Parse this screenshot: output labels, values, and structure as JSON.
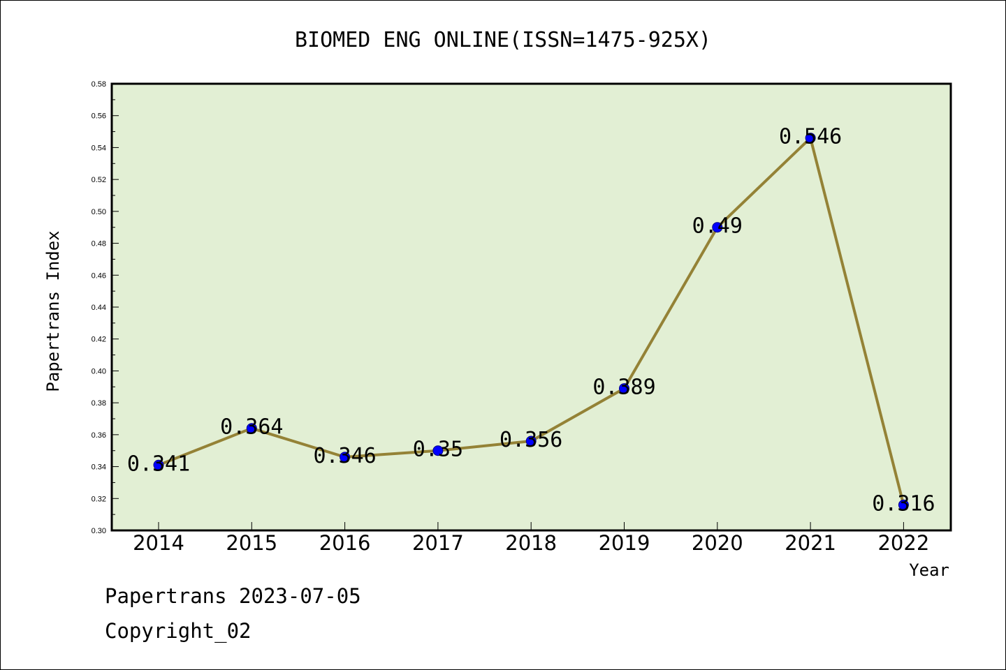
{
  "chart_data": {
    "type": "line",
    "title": "BIOMED ENG ONLINE(ISSN=1475-925X)",
    "xlabel": "Year",
    "ylabel": "Papertrans Index",
    "categories": [
      "2014",
      "2015",
      "2016",
      "2017",
      "2018",
      "2019",
      "2020",
      "2021",
      "2022"
    ],
    "series": [
      {
        "values": [
          0.341,
          0.364,
          0.346,
          0.35,
          0.356,
          0.389,
          0.49,
          0.546,
          0.316
        ]
      }
    ],
    "data_labels": [
      "0.341",
      "0.364",
      "0.346",
      "0.35",
      "0.356",
      "0.389",
      "0.49",
      "0.546",
      "0.316"
    ],
    "ylim": [
      0.3,
      0.58
    ],
    "yticks": [
      "0.30",
      "0.32",
      "0.34",
      "0.36",
      "0.38",
      "0.40",
      "0.42",
      "0.44",
      "0.46",
      "0.48",
      "0.50",
      "0.52",
      "0.54",
      "0.56",
      "0.58"
    ],
    "grid": false,
    "colors": {
      "plot_background": "#e2efd4",
      "line": "#948236",
      "marker": "#0000ff"
    }
  },
  "footer": {
    "line1": "Papertrans 2023-07-05",
    "line2": "Copyright_02"
  }
}
